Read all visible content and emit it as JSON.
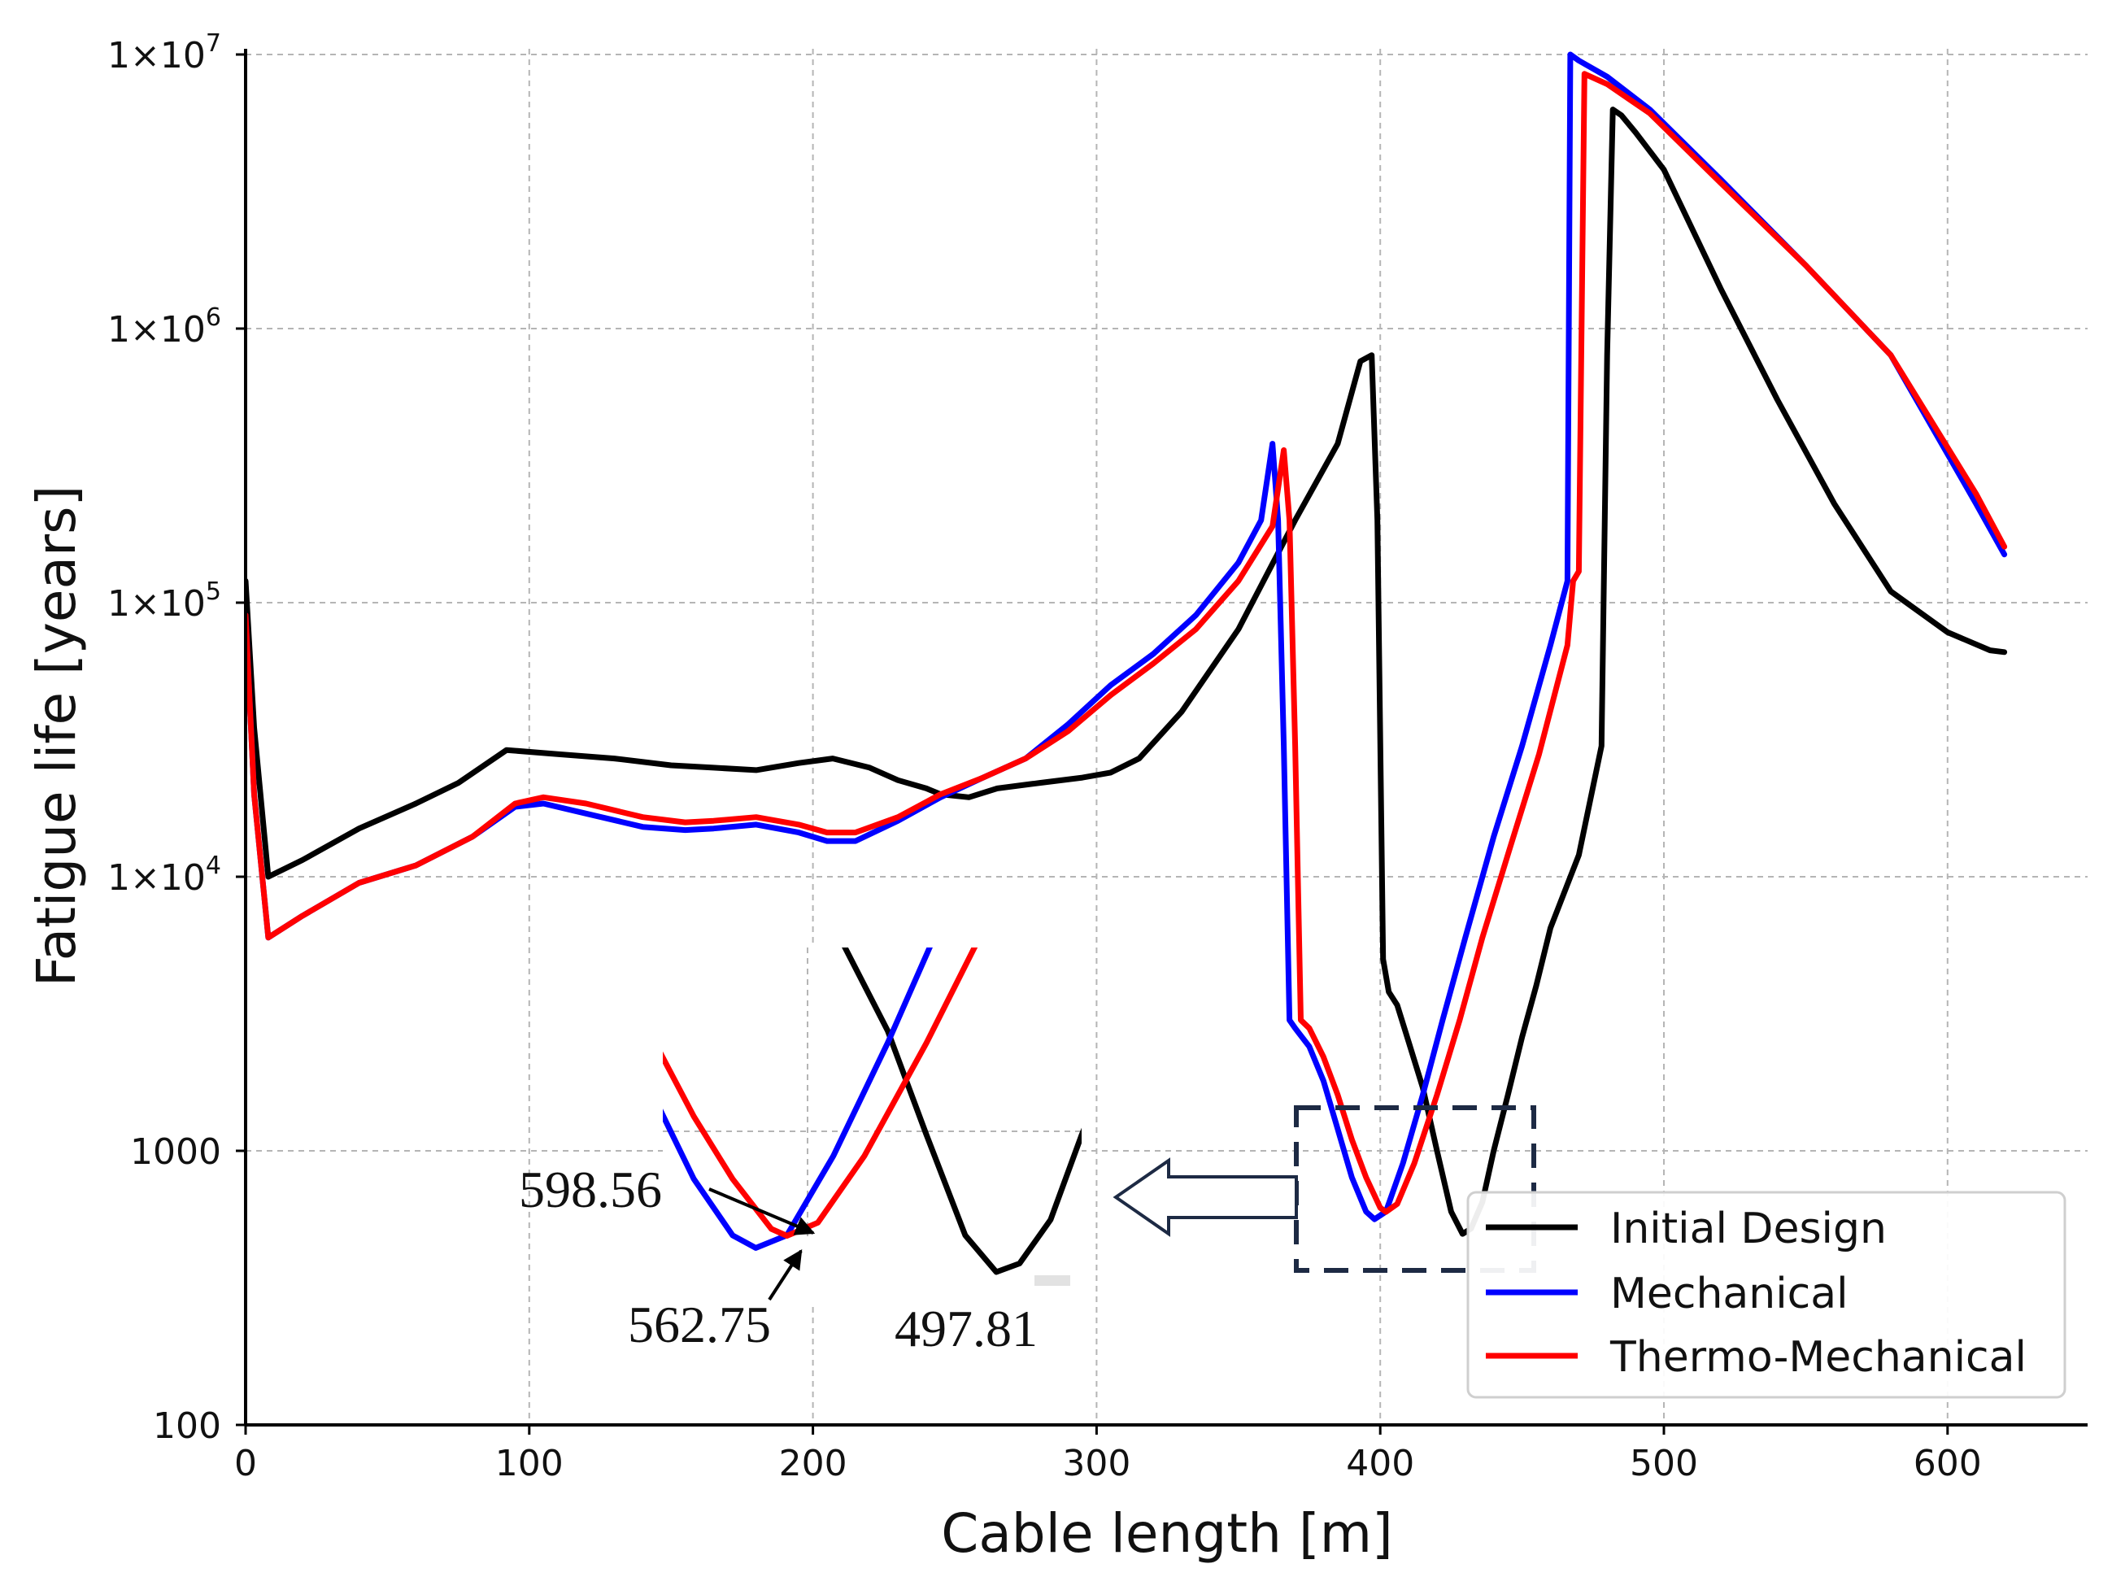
{
  "chart_data": {
    "type": "line",
    "title": "",
    "xlabel": "Cable length [m]",
    "ylabel": "Fatigue life [years]",
    "xlim": [
      0,
      650
    ],
    "ylim": [
      100,
      10000000
    ],
    "yscale": "log",
    "grid": true,
    "x_ticks": [
      0,
      100,
      200,
      300,
      400,
      500,
      600
    ],
    "x_tick_labels": [
      "0",
      "100",
      "200",
      "300",
      "400",
      "500",
      "600"
    ],
    "y_ticks": [
      100,
      1000,
      10000,
      100000,
      1000000,
      10000000
    ],
    "y_tick_labels": [
      {
        "base": "100",
        "exp": ""
      },
      {
        "base": "1000",
        "exp": ""
      },
      {
        "base": "1×10",
        "exp": "4"
      },
      {
        "base": "1×10",
        "exp": "5"
      },
      {
        "base": "1×10",
        "exp": "6"
      },
      {
        "base": "1×10",
        "exp": "7"
      }
    ],
    "legend": {
      "position": "lower-right",
      "entries": [
        "Initial Design",
        "Mechanical",
        "Thermo-Mechanical"
      ]
    },
    "series": [
      {
        "name": "Initial Design",
        "color": "#000000",
        "x": [
          0,
          3,
          8,
          20,
          40,
          60,
          75,
          92,
          110,
          130,
          150,
          165,
          180,
          195,
          207,
          220,
          230,
          240,
          245,
          255,
          265,
          280,
          295,
          305,
          315,
          330,
          350,
          370,
          385,
          393,
          397,
          399,
          401,
          403,
          406,
          410,
          415,
          420,
          425,
          429,
          432,
          436,
          440,
          445,
          450,
          455,
          460,
          470,
          478,
          480,
          482,
          485,
          490,
          500,
          520,
          540,
          560,
          580,
          600,
          615,
          620
        ],
        "y": [
          120000,
          35000,
          10000,
          11500,
          15000,
          18500,
          22000,
          29000,
          28000,
          27000,
          25500,
          25000,
          24500,
          26000,
          27000,
          25000,
          22500,
          21000,
          20000,
          19500,
          21000,
          22000,
          23000,
          24000,
          27000,
          40000,
          80000,
          200000,
          380000,
          760000,
          800000,
          200000,
          5000,
          3800,
          3400,
          2500,
          1700,
          1000,
          600,
          497.81,
          520,
          650,
          1000,
          1600,
          2600,
          4000,
          6500,
          12000,
          30000,
          800000,
          6300000,
          6000000,
          5200000,
          3800000,
          1400000,
          550000,
          230000,
          110000,
          78000,
          67000,
          66000
        ]
      },
      {
        "name": "Mechanical",
        "color": "#0000ff",
        "x": [
          0,
          3,
          8,
          20,
          40,
          60,
          80,
          95,
          105,
          120,
          140,
          155,
          165,
          180,
          195,
          205,
          215,
          230,
          245,
          260,
          275,
          290,
          305,
          320,
          335,
          350,
          358,
          362,
          364,
          366,
          368,
          370,
          375,
          380,
          385,
          390,
          395,
          398,
          402,
          408,
          415,
          422,
          430,
          440,
          450,
          460,
          466,
          467,
          470,
          480,
          495,
          520,
          550,
          580,
          610,
          620
        ],
        "y": [
          90000,
          20000,
          6000,
          7200,
          9500,
          11000,
          14000,
          18000,
          18500,
          17000,
          15200,
          14800,
          15000,
          15500,
          14500,
          13500,
          13500,
          16000,
          19500,
          23000,
          27000,
          36000,
          50000,
          65000,
          90000,
          140000,
          200000,
          380000,
          200000,
          30000,
          3000,
          2800,
          2400,
          1800,
          1200,
          800,
          600,
          562.75,
          600,
          900,
          1600,
          3000,
          6000,
          14000,
          30000,
          70000,
          120000,
          10000000,
          9500000,
          8300000,
          6300000,
          3500000,
          1700000,
          800000,
          230000,
          150000
        ]
      },
      {
        "name": "Thermo-Mechanical",
        "color": "#ff0000",
        "x": [
          0,
          3,
          8,
          20,
          40,
          60,
          80,
          95,
          105,
          120,
          140,
          155,
          165,
          180,
          195,
          205,
          215,
          230,
          245,
          260,
          275,
          290,
          305,
          320,
          335,
          350,
          362,
          366,
          368,
          370,
          372,
          375,
          380,
          385,
          390,
          395,
          400,
          402,
          406,
          412,
          420,
          428,
          436,
          446,
          456,
          466,
          468,
          470,
          472,
          480,
          495,
          520,
          550,
          580,
          610,
          620
        ],
        "y": [
          90000,
          20000,
          6000,
          7200,
          9500,
          11000,
          14000,
          18500,
          19500,
          18500,
          16500,
          15800,
          16000,
          16500,
          15500,
          14500,
          14500,
          16500,
          20000,
          23000,
          27000,
          34000,
          46000,
          60000,
          80000,
          120000,
          190000,
          360000,
          200000,
          30000,
          3000,
          2800,
          2200,
          1600,
          1100,
          800,
          620,
          598.56,
          640,
          900,
          1600,
          3000,
          6000,
          13000,
          28000,
          70000,
          120000,
          130000,
          8500000,
          7800000,
          6100000,
          3400000,
          1700000,
          800000,
          250000,
          160000
        ]
      }
    ],
    "annotations": {
      "inset_labels": [
        "598.56",
        "562.75",
        "497.81"
      ]
    }
  }
}
